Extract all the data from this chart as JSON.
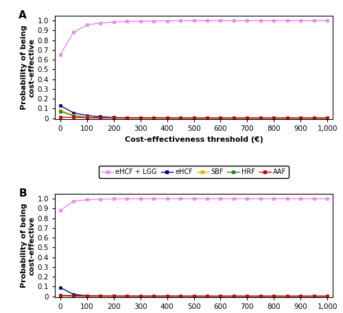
{
  "x": [
    0,
    50,
    100,
    150,
    200,
    250,
    300,
    350,
    400,
    450,
    500,
    550,
    600,
    650,
    700,
    750,
    800,
    850,
    900,
    950,
    1000
  ],
  "panelA": {
    "eHCF_LGG": [
      0.65,
      0.88,
      0.955,
      0.975,
      0.985,
      0.99,
      0.993,
      0.995,
      0.996,
      0.997,
      0.998,
      0.998,
      0.998,
      0.999,
      0.999,
      0.999,
      0.999,
      0.999,
      0.999,
      0.999,
      1.0
    ],
    "eHCF": [
      0.13,
      0.055,
      0.028,
      0.015,
      0.008,
      0.005,
      0.003,
      0.002,
      0.002,
      0.001,
      0.001,
      0.001,
      0.001,
      0.001,
      0.001,
      0.001,
      0.001,
      0.001,
      0.001,
      0.001,
      0.001
    ],
    "SBF": [
      0.08,
      0.03,
      0.008,
      0.004,
      0.002,
      0.001,
      0.001,
      0.001,
      0.001,
      0.001,
      0.001,
      0.001,
      0.001,
      0.001,
      0.001,
      0.001,
      0.001,
      0.001,
      0.001,
      0.001,
      0.001
    ],
    "HRF": [
      0.07,
      0.025,
      0.007,
      0.003,
      0.002,
      0.001,
      0.001,
      0.001,
      0.001,
      0.001,
      0.001,
      0.001,
      0.001,
      0.001,
      0.001,
      0.001,
      0.001,
      0.001,
      0.001,
      0.001,
      0.001
    ],
    "AAF": [
      0.01,
      0.008,
      0.006,
      0.005,
      0.004,
      0.004,
      0.004,
      0.004,
      0.004,
      0.004,
      0.003,
      0.003,
      0.003,
      0.003,
      0.003,
      0.003,
      0.003,
      0.003,
      0.003,
      0.003,
      0.003
    ]
  },
  "panelB": {
    "eHCF_LGG": [
      0.88,
      0.975,
      0.99,
      0.995,
      0.997,
      0.998,
      0.999,
      0.999,
      0.999,
      0.999,
      1.0,
      1.0,
      1.0,
      1.0,
      1.0,
      1.0,
      1.0,
      1.0,
      1.0,
      1.0,
      1.0
    ],
    "eHCF": [
      0.09,
      0.02,
      0.007,
      0.003,
      0.002,
      0.001,
      0.001,
      0.001,
      0.001,
      0.001,
      0.001,
      0.001,
      0.001,
      0.001,
      0.001,
      0.001,
      0.001,
      0.001,
      0.001,
      0.001,
      0.001
    ],
    "SBF": [
      0.005,
      0.002,
      0.001,
      0.001,
      0.001,
      0.001,
      0.001,
      0.001,
      0.001,
      0.001,
      0.001,
      0.001,
      0.001,
      0.001,
      0.001,
      0.001,
      0.001,
      0.001,
      0.001,
      0.001,
      0.001
    ],
    "HRF": [
      0.005,
      0.002,
      0.001,
      0.001,
      0.001,
      0.001,
      0.001,
      0.001,
      0.001,
      0.001,
      0.001,
      0.001,
      0.001,
      0.001,
      0.001,
      0.001,
      0.001,
      0.001,
      0.001,
      0.001,
      0.001
    ],
    "AAF": [
      0.01,
      0.008,
      0.006,
      0.005,
      0.004,
      0.004,
      0.004,
      0.004,
      0.004,
      0.004,
      0.003,
      0.003,
      0.003,
      0.003,
      0.003,
      0.003,
      0.003,
      0.003,
      0.003,
      0.003,
      0.003
    ]
  },
  "colors": {
    "eHCF_LGG": "#EE82EE",
    "eHCF": "#00008B",
    "SBF": "#FFA500",
    "HRF": "#228B22",
    "AAF": "#CC0000"
  },
  "markers": {
    "eHCF_LGG": "s",
    "eHCF": "s",
    "SBF": "s",
    "HRF": "s",
    "AAF": "s"
  },
  "labels": {
    "eHCF_LGG": "eHCF + LGG",
    "eHCF": "eHCF",
    "SBF": "SBF",
    "HRF": "HRF",
    "AAF": "AAF"
  },
  "xlabel": "Cost-effectiveness threshold (€)",
  "ylabel": "Probability of being\ncost-effective",
  "panel_labels": [
    "A",
    "B"
  ],
  "xlim": [
    -20,
    1020
  ],
  "ylim": [
    -0.01,
    1.05
  ],
  "yticks": [
    0.0,
    0.1,
    0.2,
    0.3,
    0.4,
    0.5,
    0.6,
    0.7,
    0.8,
    0.9,
    1.0
  ],
  "ytick_labels": [
    "0",
    "0.1",
    "0.2",
    "0.3",
    "0.4",
    "0.5",
    "0.6",
    "0.7",
    "0.8",
    "0.9",
    "1.0"
  ],
  "xticks": [
    0,
    100,
    200,
    300,
    400,
    500,
    600,
    700,
    800,
    900,
    1000
  ],
  "xtick_labels": [
    "0",
    "100",
    "200",
    "300",
    "400",
    "500",
    "600",
    "700",
    "800",
    "900",
    "1,000"
  ],
  "markersize": 3.5,
  "linewidth": 1.0,
  "legend_fontsize": 7,
  "axis_label_fontsize": 8,
  "tick_fontsize": 7.5,
  "panel_label_fontsize": 11
}
